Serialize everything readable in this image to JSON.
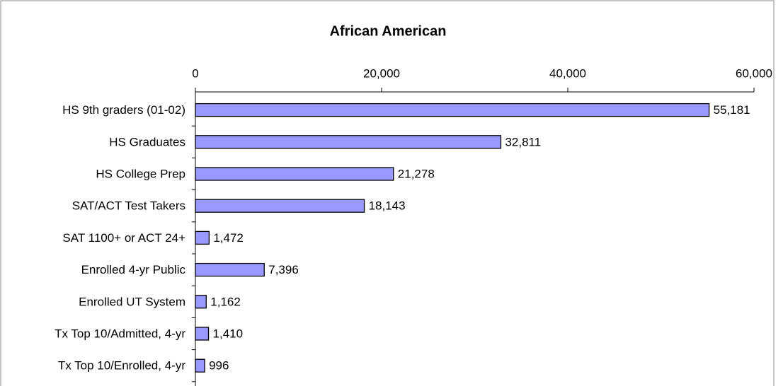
{
  "chart_data": {
    "type": "bar",
    "orientation": "horizontal",
    "title": "African American",
    "categories": [
      "HS 9th graders (01-02)",
      "HS Graduates",
      "HS College Prep",
      "SAT/ACT Test Takers",
      "SAT 1100+ or ACT 24+",
      "Enrolled 4-yr Public",
      "Enrolled UT System",
      "Tx Top 10/Admitted, 4-yr",
      "Tx Top 10/Enrolled, 4-yr"
    ],
    "values": [
      55181,
      32811,
      21278,
      18143,
      1472,
      7396,
      1162,
      1410,
      996
    ],
    "value_labels": [
      "55,181",
      "32,811",
      "21,278",
      "18,143",
      "1,472",
      "7,396",
      "1,162",
      "1,410",
      "996"
    ],
    "color": "#9999ff",
    "xlim": [
      0,
      60000
    ],
    "xticks": [
      0,
      {
        "value": 20000,
        "label": "20,000"
      },
      {
        "value": 40000,
        "label": "40,000"
      },
      {
        "value": 60000,
        "label": "60,000"
      }
    ],
    "grid": false
  }
}
